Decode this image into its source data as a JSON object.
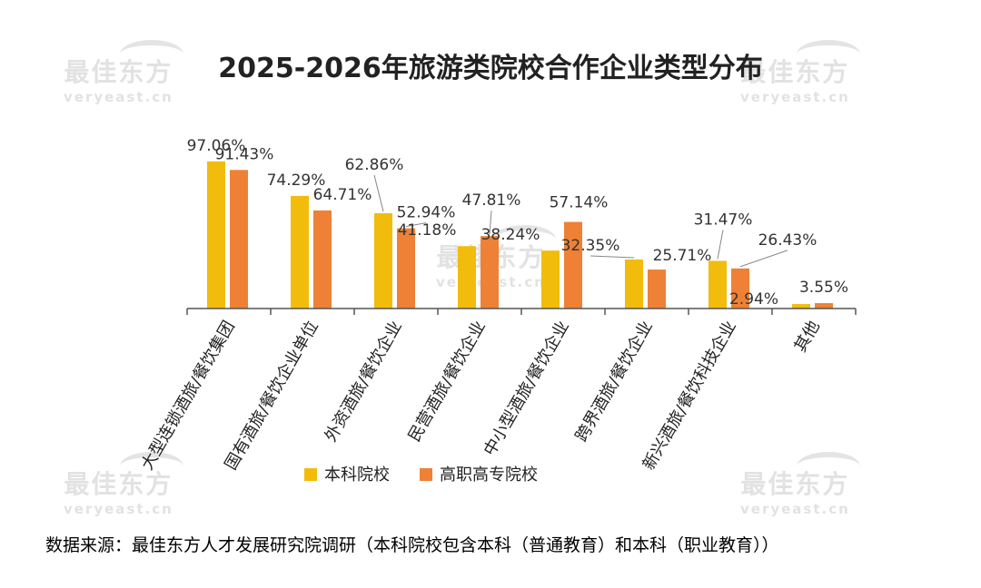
{
  "watermark": {
    "cn": "最佳东方",
    "en": "veryeast.cn"
  },
  "source_note": "数据来源：最佳东方人才发展研究院调研（本科院校包含本科（普通教育）和本科（职业教育））",
  "colors": {
    "series_a": "#F2BC0C",
    "series_b": "#EE8136",
    "axis": "#555555",
    "label": "#333333"
  },
  "chart_data": {
    "type": "bar",
    "title": "2025-2026年旅游类院校合作企业类型分布",
    "categories": [
      "大型连锁酒旅/餐饮集团",
      "国有酒旅/餐饮企业单位",
      "外资酒旅/餐饮企业",
      "民营酒旅/餐饮企业",
      "中小型酒旅/餐饮企业",
      "跨界酒旅/餐饮企业",
      "新兴酒旅/餐饮科技企业",
      "其他"
    ],
    "series": [
      {
        "name": "本科院校",
        "values": [
          97.06,
          74.29,
          62.86,
          41.18,
          38.24,
          32.35,
          31.47,
          2.94
        ],
        "labels": [
          "97.06%",
          "74.29%",
          "62.86%",
          "41.18%",
          "38.24%",
          "32.35%",
          "31.47%",
          "2.94%"
        ]
      },
      {
        "name": "高职高专院校",
        "values": [
          91.43,
          64.71,
          52.94,
          47.81,
          57.14,
          25.71,
          26.43,
          3.55
        ],
        "labels": [
          "91.43%",
          "64.71%",
          "52.94%",
          "47.81%",
          "57.14%",
          "25.71%",
          "26.43%",
          "3.55%"
        ]
      }
    ],
    "ylim": [
      0,
      100
    ],
    "grid": false,
    "legend": "bottom"
  }
}
